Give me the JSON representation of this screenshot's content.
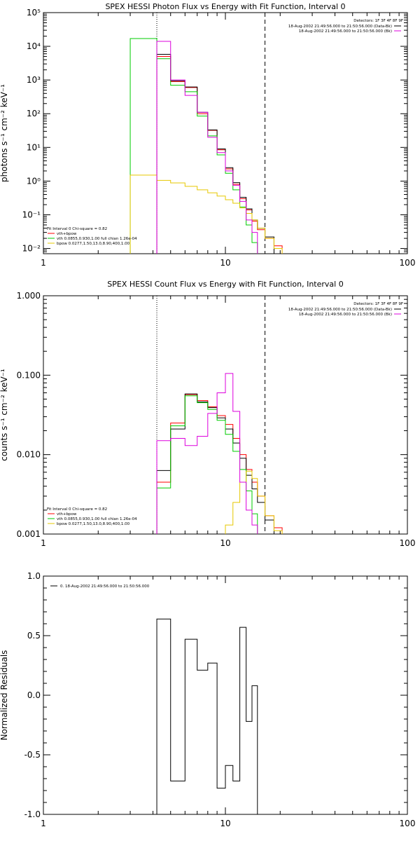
{
  "chart_data": [
    {
      "type": "line",
      "title": "SPEX HESSI Photon Flux vs Energy with Fit Function, Interval 0",
      "xlabel": "",
      "ylabel": "photons s⁻¹ cm⁻² keV⁻¹",
      "xscale": "log",
      "yscale": "log",
      "xlim": [
        1,
        100
      ],
      "ylim": [
        0.007,
        100000
      ],
      "xticks": [
        "1",
        "10",
        "100"
      ],
      "yticks": [
        {
          "v": 0.01,
          "label": "10⁻²"
        },
        {
          "v": 0.1,
          "label": "10⁻¹"
        },
        {
          "v": 1,
          "label": "10⁰"
        },
        {
          "v": 10,
          "label": "10¹"
        },
        {
          "v": 100,
          "label": "10²"
        },
        {
          "v": 1000,
          "label": "10³"
        },
        {
          "v": 10000,
          "label": "10⁴"
        },
        {
          "v": 100000,
          "label": "10⁵"
        }
      ],
      "vlines": [
        {
          "x": 4.2,
          "style": "dotted"
        },
        {
          "x": 16.5,
          "style": "dashed"
        }
      ],
      "bin_edges": [
        3.0,
        4.2,
        5.0,
        6.0,
        7.0,
        8.0,
        9.0,
        10.0,
        11.0,
        12.0,
        13.0,
        14.0,
        15.0,
        16.5,
        18.5,
        20.5
      ],
      "series": [
        {
          "name": "vth+bpow",
          "color": "#ff0000",
          "values": [
            null,
            5000,
            900,
            600,
            100,
            32,
            8.5,
            2.3,
            0.8,
            0.3,
            0.14,
            0.065,
            0.036,
            0.02,
            0.012
          ]
        },
        {
          "name": "",
          "color": "#000000",
          "values": [
            null,
            5800,
            950,
            620,
            110,
            33,
            9,
            2.5,
            0.9,
            0.33,
            0.15,
            0.07,
            0.04,
            0.022,
            null
          ]
        },
        {
          "name": "vth 0.0855,0.930,1.00  full chian 1.26e-04",
          "color": "#00cc00",
          "values": [
            17000,
            4300,
            700,
            450,
            85,
            22,
            6,
            1.7,
            0.55,
            0.17,
            0.05,
            0.015,
            0.004,
            null,
            null
          ]
        },
        {
          "name": "bpow 0.0277,1.50,13.0,8.90,400,1.00",
          "color": "#e6c800",
          "values": [
            1.5,
            1.05,
            0.88,
            0.7,
            0.55,
            0.45,
            0.36,
            0.28,
            0.22,
            0.16,
            0.11,
            0.07,
            0.04,
            0.02,
            0.01
          ]
        },
        {
          "name": "18-Aug-2002 21:49:56.000 to 21:50:56.000 (Bk)",
          "color": "#dd00dd",
          "values": [
            null,
            14000,
            1000,
            350,
            110,
            20,
            7,
            2,
            0.75,
            0.25,
            0.07,
            0.03,
            null,
            null,
            null
          ]
        }
      ],
      "legend_title": "Fit Interval 0   Chi-square = 0.82",
      "legend_placement": "bottom-left",
      "top_legend": {
        "title": "Detectors: 1F 3F 4F 8F 9F",
        "entries": [
          {
            "label": "18-Aug-2002 21:49:56.000 to 21:50:56.000 (Data-Bk)",
            "color": "#000000"
          },
          {
            "label": "18-Aug-2002 21:49:56.000 to 21:50:56.000 (Bk)",
            "color": "#dd00dd"
          }
        ]
      }
    },
    {
      "type": "line",
      "title": "SPEX HESSI Count Flux vs Energy with Fit Function, Interval 0",
      "xlabel": "",
      "ylabel": "counts s⁻¹ cm⁻² keV⁻¹",
      "xscale": "log",
      "yscale": "log",
      "xlim": [
        1,
        100
      ],
      "ylim": [
        0.001,
        1.0
      ],
      "xticks": [
        "1",
        "10",
        "100"
      ],
      "yticks": [
        {
          "v": 0.001,
          "label": "0.001"
        },
        {
          "v": 0.01,
          "label": "0.010"
        },
        {
          "v": 0.1,
          "label": "0.100"
        },
        {
          "v": 1,
          "label": "1.000"
        }
      ],
      "vlines": [
        {
          "x": 4.2,
          "style": "dotted"
        },
        {
          "x": 16.5,
          "style": "dashed"
        }
      ],
      "bin_edges": [
        3.0,
        4.2,
        5.0,
        6.0,
        7.0,
        8.0,
        9.0,
        10.0,
        11.0,
        12.0,
        13.0,
        14.0,
        15.0,
        16.5,
        18.5,
        20.5
      ],
      "series": [
        {
          "name": "vth+bpow",
          "color": "#ff0000",
          "values": [
            null,
            0.0045,
            0.025,
            0.057,
            0.048,
            0.04,
            0.031,
            0.024,
            0.016,
            0.01,
            0.0065,
            0.0045,
            0.003,
            0.0017,
            0.0012
          ]
        },
        {
          "name": "",
          "color": "#000000",
          "values": [
            null,
            0.0063,
            0.021,
            0.058,
            0.046,
            0.039,
            0.029,
            0.021,
            0.014,
            0.009,
            0.0055,
            0.0037,
            0.0025,
            0.0015,
            null
          ]
        },
        {
          "name": "vth 0.0855,0.930,1.00  full chian 1.26e-04",
          "color": "#00cc00",
          "values": [
            null,
            0.0038,
            0.023,
            0.055,
            0.045,
            0.037,
            0.027,
            0.018,
            0.011,
            0.0065,
            0.0035,
            0.0018,
            null,
            null,
            null
          ]
        },
        {
          "name": "bpow 0.0277,1.50,13.0,8.90,400,1.00",
          "color": "#e6c800",
          "values": [
            null,
            null,
            null,
            null,
            null,
            null,
            null,
            0.0013,
            0.0025,
            0.0045,
            0.0062,
            0.005,
            0.003,
            0.0017,
            0.0011
          ]
        },
        {
          "name": "18-Aug-2002 21:49:56.000 to 21:50:56.000 (Bk)",
          "color": "#dd00dd",
          "values": [
            null,
            0.015,
            0.016,
            0.013,
            0.017,
            0.033,
            0.06,
            0.105,
            0.035,
            0.0045,
            0.002,
            0.0013,
            null,
            null,
            null
          ]
        }
      ],
      "legend_title": "Fit Interval 0   Chi-square = 0.82",
      "legend_placement": "bottom-left",
      "top_legend": {
        "title": "Detectors: 1F 3F 4F 8F 9F",
        "entries": [
          {
            "label": "18-Aug-2002 21:49:56.000 to 21:50:56.000 (Data-Bk)",
            "color": "#000000"
          },
          {
            "label": "18-Aug-2002 21:49:56.000 to 21:50:56.000 (Bk)",
            "color": "#dd00dd"
          }
        ]
      }
    },
    {
      "type": "line",
      "title": "",
      "xlabel": "",
      "ylabel": "Normalized Residuals",
      "xscale": "log",
      "yscale": "linear",
      "xlim": [
        1,
        100
      ],
      "ylim": [
        -1.0,
        1.0
      ],
      "xticks": [
        "1",
        "10",
        "100"
      ],
      "yticks": [
        {
          "v": -1.0,
          "label": "-1.0"
        },
        {
          "v": -0.5,
          "label": "-0.5"
        },
        {
          "v": 0.0,
          "label": "0.0"
        },
        {
          "v": 0.5,
          "label": "0.5"
        },
        {
          "v": 1.0,
          "label": "1.0"
        }
      ],
      "bin_edges": [
        4.2,
        5.0,
        6.0,
        7.0,
        8.0,
        9.0,
        10.0,
        11.0,
        12.0,
        13.0,
        14.0,
        15.0,
        16.5
      ],
      "series": [
        {
          "name": "0. 18-Aug-2002 21:49:56.000 to 21:50:56.000",
          "color": "#000000",
          "values": [
            0.64,
            -0.72,
            0.47,
            0.21,
            0.27,
            -0.78,
            -0.59,
            -0.72,
            0.57,
            -0.22,
            0.08,
            null
          ]
        }
      ],
      "legend_placement": "top-left"
    }
  ]
}
